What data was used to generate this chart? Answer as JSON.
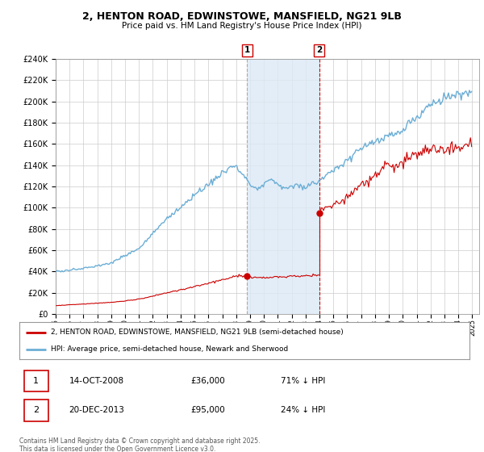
{
  "title_line1": "2, HENTON ROAD, EDWINSTOWE, MANSFIELD, NG21 9LB",
  "title_line2": "Price paid vs. HM Land Registry's House Price Index (HPI)",
  "legend_red": "2, HENTON ROAD, EDWINSTOWE, MANSFIELD, NG21 9LB (semi-detached house)",
  "legend_blue": "HPI: Average price, semi-detached house, Newark and Sherwood",
  "event1_date": "14-OCT-2008",
  "event1_price": "£36,000",
  "event1_pct": "71% ↓ HPI",
  "event2_date": "20-DEC-2013",
  "event2_price": "£95,000",
  "event2_pct": "24% ↓ HPI",
  "footer": "Contains HM Land Registry data © Crown copyright and database right 2025.\nThis data is licensed under the Open Government Licence v3.0.",
  "ylim": [
    0,
    240000
  ],
  "yticks": [
    0,
    20000,
    40000,
    60000,
    80000,
    100000,
    120000,
    140000,
    160000,
    180000,
    200000,
    220000,
    240000
  ],
  "hpi_color": "#6baed6",
  "price_color": "#cc0000",
  "shade_color": "#dce9f5",
  "event1_x_year": 2008.79,
  "event2_x_year": 2013.97,
  "event1_price_val": 36000,
  "event2_price_val": 95000,
  "xmin": 1995,
  "xmax": 2025.5
}
